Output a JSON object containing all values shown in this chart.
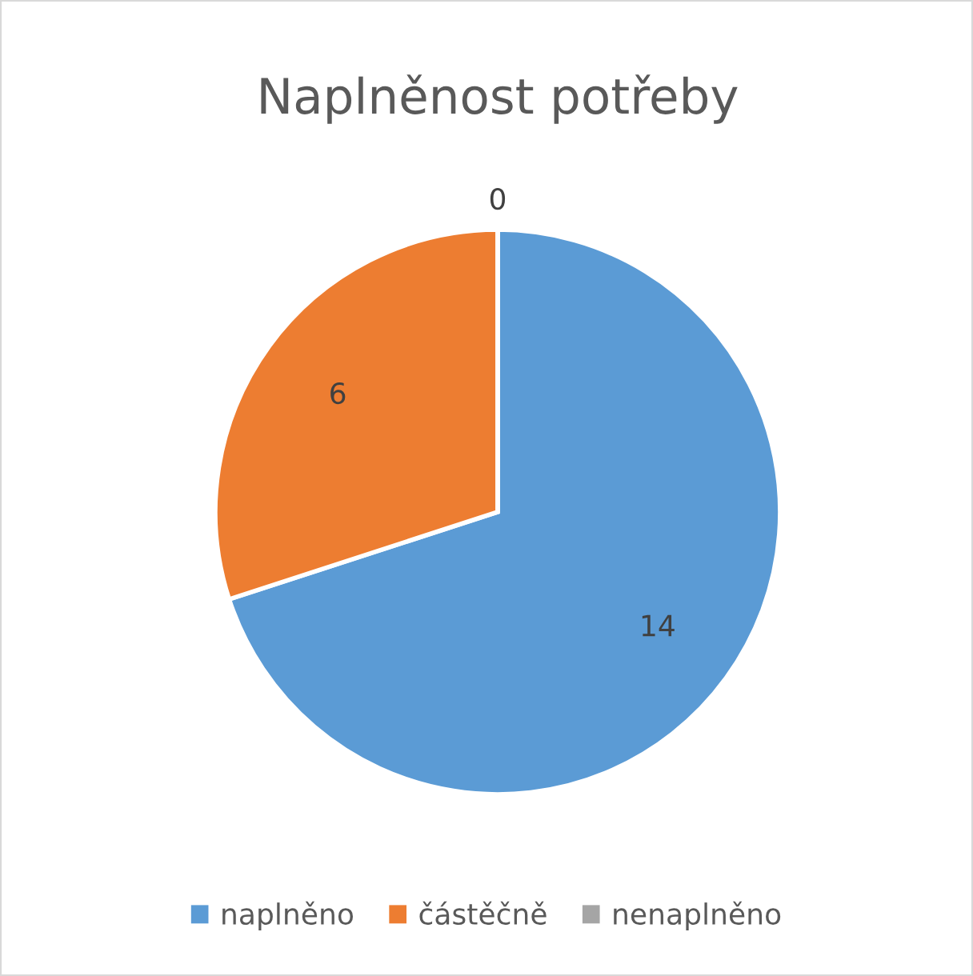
{
  "chart_data": {
    "type": "pie",
    "title": "Naplněnost potřeby",
    "categories": [
      "naplněno",
      "částěčně",
      "nenaplněno"
    ],
    "values": [
      14,
      6,
      0
    ],
    "colors": [
      "#5b9bd5",
      "#ed7d31",
      "#a5a5a5"
    ],
    "value_labels": [
      "14",
      "6",
      "0"
    ],
    "legend": "bottom"
  }
}
